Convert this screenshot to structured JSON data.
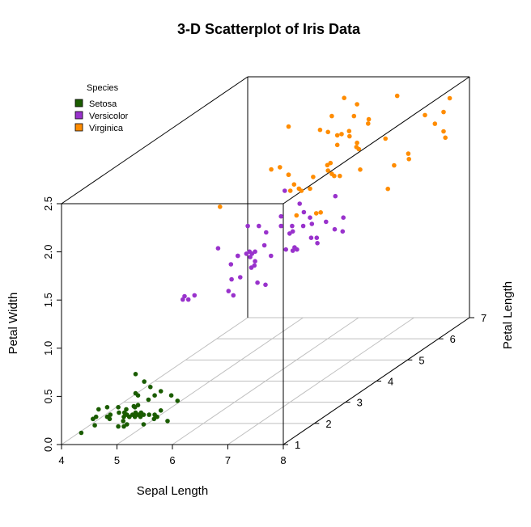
{
  "chart_data": {
    "type": "scatter3d",
    "title": "3-D Scatterplot of Iris Data",
    "xlabel": "Sepal Length",
    "ylabel": "Petal Length",
    "zlabel": "Petal Width",
    "xlim": [
      4,
      8
    ],
    "ylim": [
      1,
      7
    ],
    "zlim": [
      0,
      2.5
    ],
    "xticks": [
      "4",
      "5",
      "6",
      "7",
      "8"
    ],
    "yticks": [
      "1",
      "2",
      "3",
      "4",
      "5",
      "6",
      "7"
    ],
    "zticks": [
      "0.0",
      "0.5",
      "1.0",
      "1.5",
      "2.0",
      "2.5"
    ],
    "grid": true,
    "legend": {
      "title": "Species",
      "position": "top-left",
      "items": [
        {
          "label": "Setosa",
          "color": "#1a5c00"
        },
        {
          "label": "Versicolor",
          "color": "#9932cc"
        },
        {
          "label": "Virginica",
          "color": "#ff8c00"
        }
      ]
    },
    "series": [
      {
        "name": "Setosa",
        "color": "#1a5c00",
        "points": [
          [
            5.1,
            1.4,
            0.2
          ],
          [
            4.9,
            1.4,
            0.2
          ],
          [
            4.7,
            1.3,
            0.2
          ],
          [
            4.6,
            1.5,
            0.2
          ],
          [
            5.0,
            1.4,
            0.2
          ],
          [
            5.4,
            1.7,
            0.4
          ],
          [
            4.6,
            1.4,
            0.3
          ],
          [
            5.0,
            1.5,
            0.2
          ],
          [
            4.4,
            1.4,
            0.2
          ],
          [
            4.9,
            1.5,
            0.1
          ],
          [
            5.4,
            1.5,
            0.2
          ],
          [
            4.8,
            1.6,
            0.2
          ],
          [
            4.8,
            1.4,
            0.1
          ],
          [
            4.3,
            1.1,
            0.1
          ],
          [
            5.8,
            1.2,
            0.2
          ],
          [
            5.7,
            1.5,
            0.4
          ],
          [
            5.4,
            1.3,
            0.4
          ],
          [
            5.1,
            1.4,
            0.3
          ],
          [
            5.7,
            1.7,
            0.3
          ],
          [
            5.1,
            1.5,
            0.3
          ],
          [
            5.4,
            1.7,
            0.2
          ],
          [
            5.1,
            1.5,
            0.4
          ],
          [
            4.6,
            1.0,
            0.2
          ],
          [
            5.1,
            1.7,
            0.5
          ],
          [
            4.8,
            1.9,
            0.2
          ],
          [
            5.0,
            1.6,
            0.2
          ],
          [
            5.0,
            1.6,
            0.4
          ],
          [
            5.2,
            1.5,
            0.2
          ],
          [
            5.2,
            1.4,
            0.2
          ],
          [
            4.7,
            1.6,
            0.2
          ],
          [
            4.8,
            1.6,
            0.2
          ],
          [
            5.4,
            1.5,
            0.4
          ],
          [
            5.2,
            1.5,
            0.1
          ],
          [
            5.5,
            1.4,
            0.2
          ],
          [
            4.9,
            1.5,
            0.2
          ],
          [
            5.0,
            1.2,
            0.2
          ],
          [
            5.5,
            1.3,
            0.2
          ],
          [
            4.9,
            1.4,
            0.1
          ],
          [
            4.4,
            1.3,
            0.2
          ],
          [
            5.1,
            1.5,
            0.2
          ],
          [
            5.0,
            1.3,
            0.3
          ],
          [
            4.5,
            1.3,
            0.3
          ],
          [
            4.4,
            1.3,
            0.2
          ],
          [
            5.0,
            1.6,
            0.6
          ],
          [
            5.1,
            1.9,
            0.4
          ],
          [
            4.8,
            1.4,
            0.3
          ],
          [
            5.1,
            1.6,
            0.2
          ],
          [
            4.6,
            1.4,
            0.2
          ],
          [
            5.3,
            1.5,
            0.2
          ],
          [
            5.0,
            1.4,
            0.2
          ]
        ]
      },
      {
        "name": "Versicolor",
        "color": "#9932cc",
        "points": [
          [
            7.0,
            4.7,
            1.4
          ],
          [
            6.4,
            4.5,
            1.5
          ],
          [
            6.9,
            4.9,
            1.5
          ],
          [
            5.5,
            4.0,
            1.3
          ],
          [
            6.5,
            4.6,
            1.5
          ],
          [
            5.7,
            4.5,
            1.3
          ],
          [
            6.3,
            4.7,
            1.6
          ],
          [
            4.9,
            3.3,
            1.0
          ],
          [
            6.6,
            4.6,
            1.3
          ],
          [
            5.2,
            3.9,
            1.4
          ],
          [
            5.0,
            3.5,
            1.0
          ],
          [
            5.9,
            4.2,
            1.5
          ],
          [
            6.0,
            4.0,
            1.0
          ],
          [
            6.1,
            4.7,
            1.4
          ],
          [
            5.6,
            3.6,
            1.3
          ],
          [
            6.7,
            4.4,
            1.4
          ],
          [
            5.6,
            4.5,
            1.5
          ],
          [
            5.8,
            4.1,
            1.0
          ],
          [
            6.2,
            4.5,
            1.5
          ],
          [
            5.6,
            3.9,
            1.1
          ],
          [
            5.9,
            4.8,
            1.8
          ],
          [
            6.1,
            4.0,
            1.3
          ],
          [
            6.3,
            4.9,
            1.5
          ],
          [
            6.1,
            4.7,
            1.2
          ],
          [
            6.4,
            4.3,
            1.3
          ],
          [
            6.6,
            4.4,
            1.4
          ],
          [
            6.8,
            4.8,
            1.4
          ],
          [
            6.7,
            5.0,
            1.7
          ],
          [
            6.0,
            4.5,
            1.5
          ],
          [
            5.7,
            3.5,
            1.0
          ],
          [
            5.5,
            3.8,
            1.1
          ],
          [
            5.5,
            3.7,
            1.0
          ],
          [
            5.8,
            3.9,
            1.2
          ],
          [
            6.0,
            5.1,
            1.6
          ],
          [
            5.4,
            4.5,
            1.5
          ],
          [
            6.0,
            4.5,
            1.6
          ],
          [
            6.7,
            4.7,
            1.5
          ],
          [
            6.3,
            4.4,
            1.3
          ],
          [
            5.6,
            4.1,
            1.3
          ],
          [
            5.5,
            4.0,
            1.3
          ],
          [
            5.5,
            4.4,
            1.2
          ],
          [
            6.1,
            4.6,
            1.4
          ],
          [
            5.8,
            4.0,
            1.2
          ],
          [
            5.0,
            3.3,
            1.0
          ],
          [
            5.6,
            4.2,
            1.3
          ],
          [
            5.7,
            4.2,
            1.2
          ],
          [
            5.7,
            4.2,
            1.3
          ],
          [
            6.2,
            4.3,
            1.3
          ],
          [
            5.1,
            3.0,
            1.1
          ],
          [
            5.7,
            4.1,
            1.3
          ]
        ]
      },
      {
        "name": "Virginica",
        "color": "#ff8c00",
        "points": [
          [
            6.3,
            6.0,
            2.5
          ],
          [
            5.8,
            5.1,
            1.9
          ],
          [
            7.1,
            5.9,
            2.1
          ],
          [
            6.3,
            5.6,
            1.8
          ],
          [
            6.5,
            5.8,
            2.2
          ],
          [
            7.6,
            6.6,
            2.1
          ],
          [
            4.9,
            4.5,
            1.7
          ],
          [
            7.3,
            6.3,
            1.8
          ],
          [
            6.7,
            5.8,
            1.8
          ],
          [
            7.2,
            6.1,
            2.5
          ],
          [
            6.5,
            5.1,
            2.0
          ],
          [
            6.4,
            5.3,
            1.9
          ],
          [
            6.8,
            5.5,
            2.1
          ],
          [
            5.7,
            5.0,
            2.0
          ],
          [
            5.8,
            5.1,
            2.4
          ],
          [
            6.4,
            5.3,
            2.3
          ],
          [
            6.5,
            5.5,
            1.8
          ],
          [
            7.7,
            6.7,
            2.2
          ],
          [
            7.7,
            6.9,
            2.3
          ],
          [
            6.0,
            5.0,
            1.5
          ],
          [
            6.9,
            5.7,
            2.3
          ],
          [
            5.6,
            4.9,
            2.0
          ],
          [
            7.7,
            6.7,
            2.0
          ],
          [
            6.3,
            4.9,
            1.8
          ],
          [
            6.7,
            5.7,
            2.1
          ],
          [
            7.2,
            6.0,
            1.8
          ],
          [
            6.2,
            4.8,
            1.8
          ],
          [
            6.1,
            4.9,
            1.8
          ],
          [
            6.4,
            5.6,
            2.1
          ],
          [
            7.2,
            5.8,
            1.6
          ],
          [
            7.4,
            6.1,
            1.9
          ],
          [
            7.9,
            6.4,
            2.0
          ],
          [
            6.4,
            5.6,
            2.2
          ],
          [
            6.3,
            5.1,
            1.5
          ],
          [
            6.1,
            5.6,
            1.4
          ],
          [
            7.7,
            6.1,
            2.3
          ],
          [
            6.3,
            5.6,
            2.4
          ],
          [
            6.4,
            5.5,
            1.8
          ],
          [
            6.0,
            4.8,
            1.8
          ],
          [
            6.9,
            5.4,
            2.1
          ],
          [
            6.7,
            5.6,
            2.4
          ],
          [
            6.9,
            5.1,
            2.3
          ],
          [
            5.8,
            5.1,
            1.9
          ],
          [
            6.8,
            5.9,
            2.3
          ],
          [
            6.7,
            5.7,
            2.5
          ],
          [
            6.7,
            5.2,
            2.3
          ],
          [
            6.3,
            5.0,
            1.9
          ],
          [
            6.5,
            5.2,
            2.0
          ],
          [
            6.2,
            5.4,
            2.3
          ],
          [
            5.9,
            5.1,
            1.8
          ]
        ]
      }
    ]
  }
}
